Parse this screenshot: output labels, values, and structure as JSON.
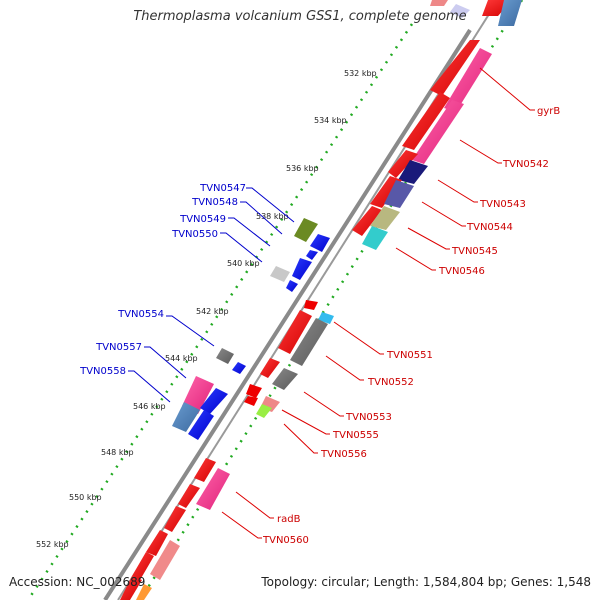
{
  "title": "Thermoplasma volcanium GSS1, complete genome",
  "accession": "Accession: NC_002689",
  "summary": "Topology: circular; Length: 1,584,804 bp; Genes: 1,548",
  "colors": {
    "backbone": "#8a8a8a",
    "tick_dots": "#22aa22",
    "forward_label": "#cc0000",
    "reverse_label": "#0000cc"
  },
  "kbp_ticks": [
    "532 kbp",
    "534 kbp",
    "536 kbp",
    "538 kbp",
    "540 kbp",
    "542 kbp",
    "544 kbp",
    "546 kbp",
    "548 kbp",
    "550 kbp",
    "552 kbp"
  ],
  "forward_genes": [
    "gyrB",
    "TVN0542",
    "TVN0543",
    "TVN0544",
    "TVN0545",
    "TVN0546",
    "TVN0551",
    "TVN0552",
    "TVN0553",
    "TVN0555",
    "TVN0556",
    "radB",
    "TVN0560"
  ],
  "reverse_genes": [
    "TVN0547",
    "TVN0548",
    "TVN0549",
    "TVN0550",
    "TVN0554",
    "TVN0557",
    "TVN0558"
  ]
}
